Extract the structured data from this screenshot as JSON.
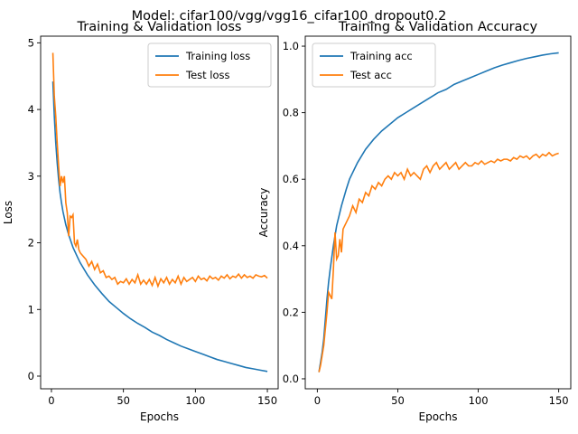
{
  "figure": {
    "suptitle": "Model: cifar100/vgg/vgg16_cifar100_dropout0.2"
  },
  "chart_data": [
    {
      "type": "line",
      "title": "Training & Validation loss",
      "xlabel": "Epochs",
      "ylabel": "Loss",
      "xlim": [
        -7.5,
        157.5
      ],
      "ylim": [
        -0.19,
        5.1
      ],
      "xticks": [
        0,
        50,
        100,
        150
      ],
      "yticks": [
        0,
        1,
        2,
        3,
        4,
        5
      ],
      "grid": false,
      "legend_position": "top-right",
      "series": [
        {
          "name": "Training loss",
          "color": "#1f77b4",
          "points": [
            [
              1,
              4.42
            ],
            [
              2,
              3.9
            ],
            [
              3,
              3.5
            ],
            [
              4,
              3.2
            ],
            [
              5,
              2.95
            ],
            [
              6,
              2.75
            ],
            [
              7,
              2.6
            ],
            [
              8,
              2.47
            ],
            [
              10,
              2.27
            ],
            [
              12,
              2.12
            ],
            [
              15,
              1.93
            ],
            [
              18,
              1.79
            ],
            [
              20,
              1.7
            ],
            [
              25,
              1.52
            ],
            [
              30,
              1.37
            ],
            [
              35,
              1.24
            ],
            [
              40,
              1.12
            ],
            [
              45,
              1.03
            ],
            [
              50,
              0.94
            ],
            [
              55,
              0.86
            ],
            [
              60,
              0.79
            ],
            [
              65,
              0.73
            ],
            [
              70,
              0.66
            ],
            [
              75,
              0.61
            ],
            [
              80,
              0.55
            ],
            [
              85,
              0.5
            ],
            [
              90,
              0.45
            ],
            [
              95,
              0.41
            ],
            [
              100,
              0.37
            ],
            [
              105,
              0.33
            ],
            [
              110,
              0.29
            ],
            [
              115,
              0.25
            ],
            [
              120,
              0.22
            ],
            [
              125,
              0.19
            ],
            [
              130,
              0.16
            ],
            [
              135,
              0.13
            ],
            [
              140,
              0.11
            ],
            [
              145,
              0.09
            ],
            [
              150,
              0.07
            ]
          ]
        },
        {
          "name": "Test loss",
          "color": "#ff7f0e",
          "points": [
            [
              1,
              4.85
            ],
            [
              2,
              4.2
            ],
            [
              3,
              3.9
            ],
            [
              4,
              3.5
            ],
            [
              5,
              3.15
            ],
            [
              6,
              2.85
            ],
            [
              7,
              3.0
            ],
            [
              8,
              2.9
            ],
            [
              9,
              3.0
            ],
            [
              10,
              2.6
            ],
            [
              11,
              2.45
            ],
            [
              12,
              2.1
            ],
            [
              13,
              2.4
            ],
            [
              14,
              2.38
            ],
            [
              15,
              2.42
            ],
            [
              16,
              2.0
            ],
            [
              17,
              1.95
            ],
            [
              18,
              2.05
            ],
            [
              19,
              1.9
            ],
            [
              20,
              1.85
            ],
            [
              22,
              1.8
            ],
            [
              24,
              1.75
            ],
            [
              26,
              1.65
            ],
            [
              28,
              1.72
            ],
            [
              30,
              1.6
            ],
            [
              32,
              1.68
            ],
            [
              34,
              1.55
            ],
            [
              36,
              1.58
            ],
            [
              38,
              1.48
            ],
            [
              40,
              1.5
            ],
            [
              42,
              1.45
            ],
            [
              44,
              1.48
            ],
            [
              46,
              1.38
            ],
            [
              48,
              1.42
            ],
            [
              50,
              1.4
            ],
            [
              52,
              1.46
            ],
            [
              54,
              1.38
            ],
            [
              56,
              1.45
            ],
            [
              58,
              1.4
            ],
            [
              60,
              1.52
            ],
            [
              62,
              1.38
            ],
            [
              64,
              1.44
            ],
            [
              66,
              1.38
            ],
            [
              68,
              1.45
            ],
            [
              70,
              1.36
            ],
            [
              72,
              1.48
            ],
            [
              74,
              1.35
            ],
            [
              76,
              1.46
            ],
            [
              78,
              1.4
            ],
            [
              80,
              1.48
            ],
            [
              82,
              1.38
            ],
            [
              84,
              1.45
            ],
            [
              86,
              1.4
            ],
            [
              88,
              1.5
            ],
            [
              90,
              1.38
            ],
            [
              92,
              1.48
            ],
            [
              94,
              1.42
            ],
            [
              96,
              1.45
            ],
            [
              98,
              1.48
            ],
            [
              100,
              1.42
            ],
            [
              102,
              1.5
            ],
            [
              104,
              1.45
            ],
            [
              106,
              1.47
            ],
            [
              108,
              1.43
            ],
            [
              110,
              1.5
            ],
            [
              112,
              1.46
            ],
            [
              114,
              1.48
            ],
            [
              116,
              1.44
            ],
            [
              118,
              1.5
            ],
            [
              120,
              1.47
            ],
            [
              122,
              1.52
            ],
            [
              124,
              1.46
            ],
            [
              126,
              1.5
            ],
            [
              128,
              1.48
            ],
            [
              130,
              1.53
            ],
            [
              132,
              1.47
            ],
            [
              134,
              1.52
            ],
            [
              136,
              1.48
            ],
            [
              138,
              1.5
            ],
            [
              140,
              1.47
            ],
            [
              142,
              1.52
            ],
            [
              144,
              1.5
            ],
            [
              146,
              1.49
            ],
            [
              148,
              1.51
            ],
            [
              150,
              1.47
            ]
          ]
        }
      ]
    },
    {
      "type": "line",
      "title": "Training & Validation Accuracy",
      "xlabel": "Epochs",
      "ylabel": "Accuracy",
      "xlim": [
        -7.5,
        157.5
      ],
      "ylim": [
        -0.03,
        1.03
      ],
      "xticks": [
        0,
        50,
        100,
        150
      ],
      "yticks": [
        0.0,
        0.2,
        0.4,
        0.6,
        0.8,
        1.0
      ],
      "grid": false,
      "legend_position": "top-left",
      "series": [
        {
          "name": "Training acc",
          "color": "#1f77b4",
          "points": [
            [
              1,
              0.02
            ],
            [
              2,
              0.05
            ],
            [
              3,
              0.08
            ],
            [
              4,
              0.12
            ],
            [
              5,
              0.18
            ],
            [
              6,
              0.24
            ],
            [
              7,
              0.29
            ],
            [
              8,
              0.33
            ],
            [
              10,
              0.4
            ],
            [
              12,
              0.46
            ],
            [
              15,
              0.52
            ],
            [
              18,
              0.57
            ],
            [
              20,
              0.6
            ],
            [
              25,
              0.65
            ],
            [
              30,
              0.69
            ],
            [
              35,
              0.72
            ],
            [
              40,
              0.745
            ],
            [
              45,
              0.765
            ],
            [
              50,
              0.785
            ],
            [
              55,
              0.8
            ],
            [
              60,
              0.815
            ],
            [
              65,
              0.83
            ],
            [
              70,
              0.845
            ],
            [
              75,
              0.86
            ],
            [
              80,
              0.87
            ],
            [
              85,
              0.885
            ],
            [
              90,
              0.895
            ],
            [
              95,
              0.905
            ],
            [
              100,
              0.915
            ],
            [
              105,
              0.925
            ],
            [
              110,
              0.935
            ],
            [
              115,
              0.943
            ],
            [
              120,
              0.95
            ],
            [
              125,
              0.957
            ],
            [
              130,
              0.963
            ],
            [
              135,
              0.968
            ],
            [
              140,
              0.973
            ],
            [
              145,
              0.977
            ],
            [
              150,
              0.98
            ]
          ]
        },
        {
          "name": "Test acc",
          "color": "#ff7f0e",
          "points": [
            [
              1,
              0.02
            ],
            [
              2,
              0.04
            ],
            [
              3,
              0.07
            ],
            [
              4,
              0.1
            ],
            [
              5,
              0.15
            ],
            [
              6,
              0.2
            ],
            [
              7,
              0.26
            ],
            [
              8,
              0.25
            ],
            [
              9,
              0.24
            ],
            [
              10,
              0.33
            ],
            [
              11,
              0.44
            ],
            [
              12,
              0.36
            ],
            [
              13,
              0.37
            ],
            [
              14,
              0.42
            ],
            [
              15,
              0.38
            ],
            [
              16,
              0.45
            ],
            [
              18,
              0.47
            ],
            [
              20,
              0.49
            ],
            [
              22,
              0.52
            ],
            [
              24,
              0.5
            ],
            [
              26,
              0.54
            ],
            [
              28,
              0.53
            ],
            [
              30,
              0.56
            ],
            [
              32,
              0.55
            ],
            [
              34,
              0.58
            ],
            [
              36,
              0.57
            ],
            [
              38,
              0.59
            ],
            [
              40,
              0.58
            ],
            [
              42,
              0.6
            ],
            [
              44,
              0.61
            ],
            [
              46,
              0.6
            ],
            [
              48,
              0.62
            ],
            [
              50,
              0.61
            ],
            [
              52,
              0.62
            ],
            [
              54,
              0.6
            ],
            [
              56,
              0.63
            ],
            [
              58,
              0.61
            ],
            [
              60,
              0.62
            ],
            [
              62,
              0.61
            ],
            [
              64,
              0.6
            ],
            [
              66,
              0.63
            ],
            [
              68,
              0.64
            ],
            [
              70,
              0.62
            ],
            [
              72,
              0.64
            ],
            [
              74,
              0.65
            ],
            [
              76,
              0.63
            ],
            [
              78,
              0.64
            ],
            [
              80,
              0.65
            ],
            [
              82,
              0.63
            ],
            [
              84,
              0.64
            ],
            [
              86,
              0.65
            ],
            [
              88,
              0.63
            ],
            [
              90,
              0.64
            ],
            [
              92,
              0.65
            ],
            [
              94,
              0.64
            ],
            [
              96,
              0.64
            ],
            [
              98,
              0.65
            ],
            [
              100,
              0.645
            ],
            [
              102,
              0.655
            ],
            [
              104,
              0.645
            ],
            [
              106,
              0.65
            ],
            [
              108,
              0.655
            ],
            [
              110,
              0.65
            ],
            [
              112,
              0.66
            ],
            [
              114,
              0.655
            ],
            [
              116,
              0.66
            ],
            [
              118,
              0.66
            ],
            [
              120,
              0.655
            ],
            [
              122,
              0.665
            ],
            [
              124,
              0.66
            ],
            [
              126,
              0.67
            ],
            [
              128,
              0.665
            ],
            [
              130,
              0.67
            ],
            [
              132,
              0.66
            ],
            [
              134,
              0.67
            ],
            [
              136,
              0.675
            ],
            [
              138,
              0.665
            ],
            [
              140,
              0.675
            ],
            [
              142,
              0.67
            ],
            [
              144,
              0.68
            ],
            [
              146,
              0.67
            ],
            [
              148,
              0.675
            ],
            [
              150,
              0.678
            ]
          ]
        }
      ]
    }
  ]
}
